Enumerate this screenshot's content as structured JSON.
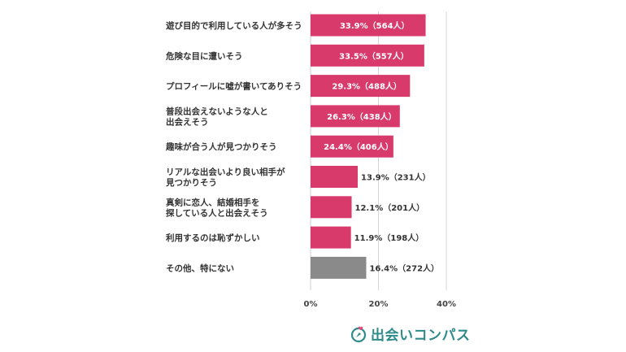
{
  "colors": {
    "bar": "#d83a6c",
    "bar_other": "#8a8a8a",
    "grid": "#cccccc",
    "label_inside": "#ffffff",
    "label_outside": "#333333",
    "brand": "#2f8a8a"
  },
  "chart_data": {
    "type": "bar",
    "orientation": "horizontal",
    "categories": [
      [
        "遊び目的で利用している人が多そう"
      ],
      [
        "危険な目に遭いそう"
      ],
      [
        "プロフィールに嘘が書いてありそう"
      ],
      [
        "普段出会えないような人と",
        "出会えそう"
      ],
      [
        "趣味が合う人が見つかりそう"
      ],
      [
        "リアルな出会いより良い相手が",
        "見つかりそう"
      ],
      [
        "真剣に恋人、結婚相手を",
        "探している人と出会えそう"
      ],
      [
        "利用するのは恥ずかしい"
      ],
      [
        "その他、特にない"
      ]
    ],
    "values": [
      33.9,
      33.5,
      29.3,
      26.3,
      24.4,
      13.9,
      12.1,
      11.9,
      16.4
    ],
    "counts": [
      564,
      557,
      488,
      438,
      406,
      231,
      201,
      198,
      272
    ],
    "value_labels": [
      "33.9%（564人）",
      "33.5%（557人）",
      "29.3%（488人）",
      "26.3%（438人）",
      "24.4%（406人）",
      "13.9%（231人）",
      "12.1%（201人）",
      "11.9%（198人）",
      "16.4%（272人）"
    ],
    "label_inside": [
      true,
      true,
      true,
      true,
      true,
      false,
      false,
      false,
      false
    ],
    "xlim": [
      0,
      40
    ],
    "xticks": [
      "0%",
      "20%",
      "40%"
    ],
    "grid": true
  },
  "brand": {
    "name": "出会いコンパス",
    "icon": "compass-heart-icon"
  }
}
